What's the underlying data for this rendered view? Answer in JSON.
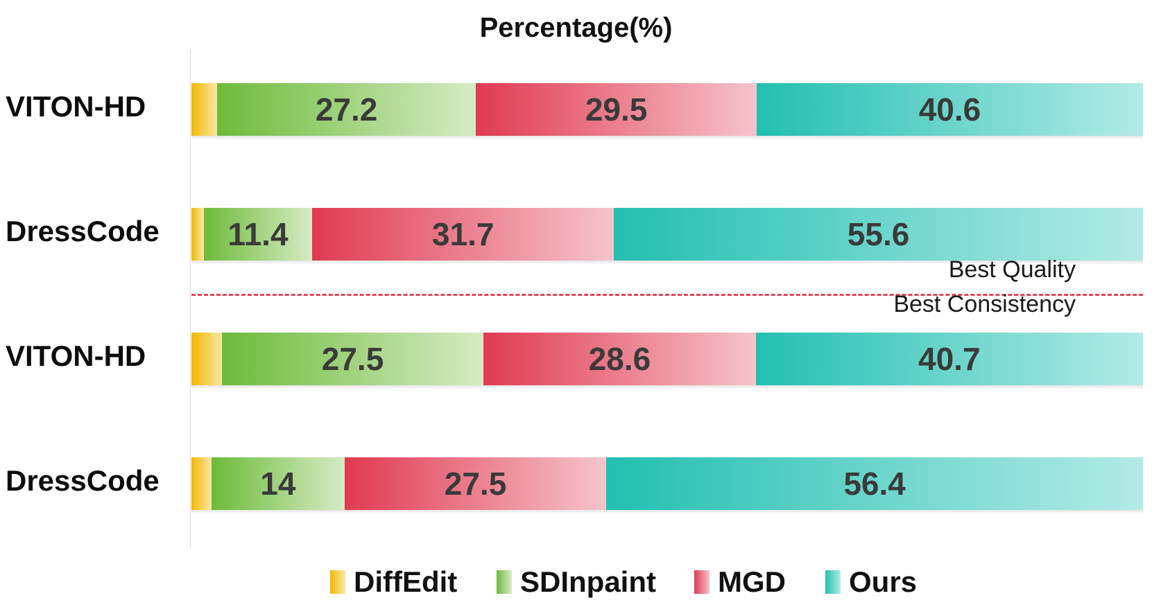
{
  "chart_data": {
    "type": "bar",
    "orientation": "horizontal",
    "stacked": true,
    "title": "Percentage(%)",
    "categories": [
      "VITON-HD",
      "DressCode",
      "VITON-HD",
      "DressCode"
    ],
    "series": [
      {
        "name": "DiffEdit",
        "values": [
          2.7,
          1.3,
          3.2,
          2.1
        ],
        "labels": [
          "",
          "",
          "",
          ""
        ]
      },
      {
        "name": "SDInpaint",
        "values": [
          27.2,
          11.4,
          27.5,
          14
        ],
        "labels": [
          "27.2",
          "11.4",
          "27.5",
          "14"
        ]
      },
      {
        "name": "MGD",
        "values": [
          29.5,
          31.7,
          28.6,
          27.5
        ],
        "labels": [
          "29.5",
          "31.7",
          "28.6",
          "27.5"
        ]
      },
      {
        "name": "Ours",
        "values": [
          40.6,
          55.6,
          40.7,
          56.4
        ],
        "labels": [
          "40.6",
          "55.6",
          "40.7",
          "56.4"
        ]
      }
    ],
    "xlim": [
      0,
      100
    ],
    "grid": false,
    "legend_position": "bottom",
    "annotations": [
      "Best Quality",
      "Best Consistency"
    ]
  },
  "colors": {
    "DiffEdit": [
      "#f2b800",
      "#fbe7a6"
    ],
    "SDInpaint": [
      "#6dbb3a",
      "#d6ebc4"
    ],
    "MGD": [
      "#e03a52",
      "#f6c4cb"
    ],
    "Ours": [
      "#22bfb0",
      "#b3ebe6"
    ],
    "divider": "#e0445a"
  }
}
